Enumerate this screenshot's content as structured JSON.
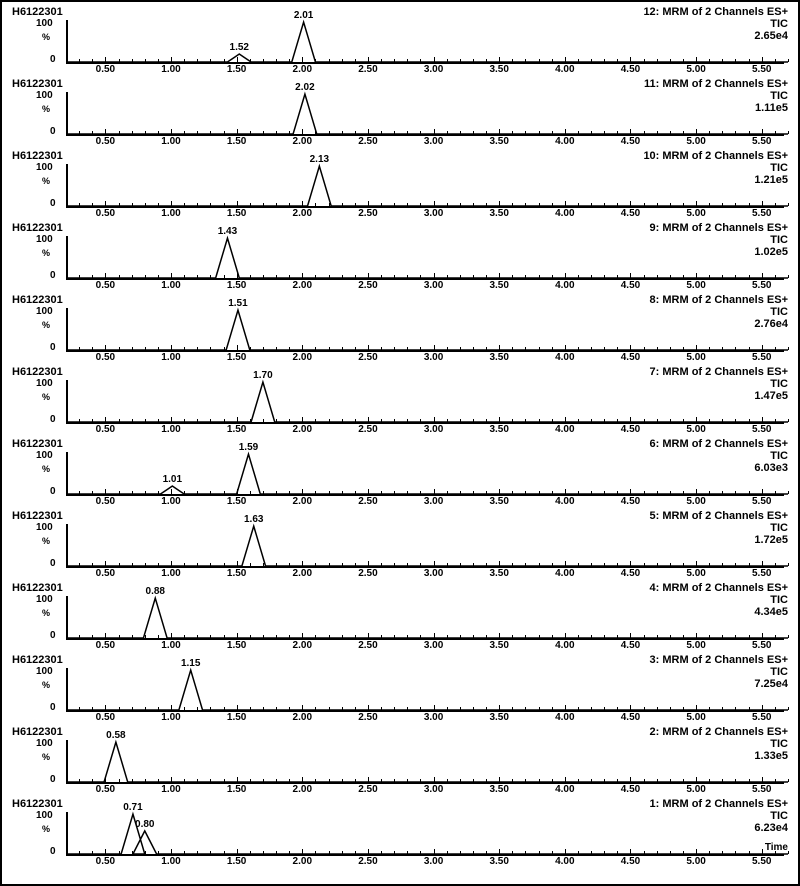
{
  "sample_id": "H6122301",
  "channel_header": "MRM of 2 Channels ES+",
  "tic_label": "TIC",
  "time_axis_label": "Time",
  "plot": {
    "type": "line",
    "xlim": [
      0.2,
      5.7
    ],
    "xtick_step": 0.5,
    "xtick_minor_step": 0.1,
    "xtick_start": 0.5,
    "xtick_end": 5.5,
    "ylim": [
      0,
      100
    ],
    "ytick_labels": [
      "0",
      "100"
    ],
    "y_unit": "%",
    "line_color": "#000000",
    "line_width": 1.5,
    "background_color": "#ffffff",
    "axis_color": "#000000",
    "tick_fontsize": 10,
    "label_fontsize": 11,
    "peak_width": 0.18
  },
  "panels": [
    {
      "channel": 12,
      "intensity": "2.65e4",
      "peaks": [
        {
          "rt": 2.01,
          "label": "2.01"
        },
        {
          "rt": 1.52,
          "label": "1.52",
          "minor": true
        }
      ]
    },
    {
      "channel": 11,
      "intensity": "1.11e5",
      "peaks": [
        {
          "rt": 2.02,
          "label": "2.02"
        }
      ]
    },
    {
      "channel": 10,
      "intensity": "1.21e5",
      "peaks": [
        {
          "rt": 2.13,
          "label": "2.13"
        }
      ]
    },
    {
      "channel": 9,
      "intensity": "1.02e5",
      "peaks": [
        {
          "rt": 1.43,
          "label": "1.43"
        }
      ]
    },
    {
      "channel": 8,
      "intensity": "2.76e4",
      "peaks": [
        {
          "rt": 1.51,
          "label": "1.51"
        }
      ]
    },
    {
      "channel": 7,
      "intensity": "1.47e5",
      "peaks": [
        {
          "rt": 1.7,
          "label": "1.70"
        }
      ]
    },
    {
      "channel": 6,
      "intensity": "6.03e3",
      "peaks": [
        {
          "rt": 1.59,
          "label": "1.59"
        },
        {
          "rt": 1.01,
          "label": "1.01",
          "minor": true
        }
      ]
    },
    {
      "channel": 5,
      "intensity": "1.72e5",
      "peaks": [
        {
          "rt": 1.63,
          "label": "1.63"
        }
      ]
    },
    {
      "channel": 4,
      "intensity": "4.34e5",
      "peaks": [
        {
          "rt": 0.88,
          "label": "0.88"
        }
      ]
    },
    {
      "channel": 3,
      "intensity": "7.25e4",
      "peaks": [
        {
          "rt": 1.15,
          "label": "1.15"
        }
      ]
    },
    {
      "channel": 2,
      "intensity": "1.33e5",
      "peaks": [
        {
          "rt": 0.58,
          "label": "0.58"
        }
      ]
    },
    {
      "channel": 1,
      "intensity": "6.23e4",
      "peaks": [
        {
          "rt": 0.71,
          "label": "0.71"
        },
        {
          "rt": 0.8,
          "label": "0.80",
          "secondary": true
        }
      ]
    }
  ]
}
